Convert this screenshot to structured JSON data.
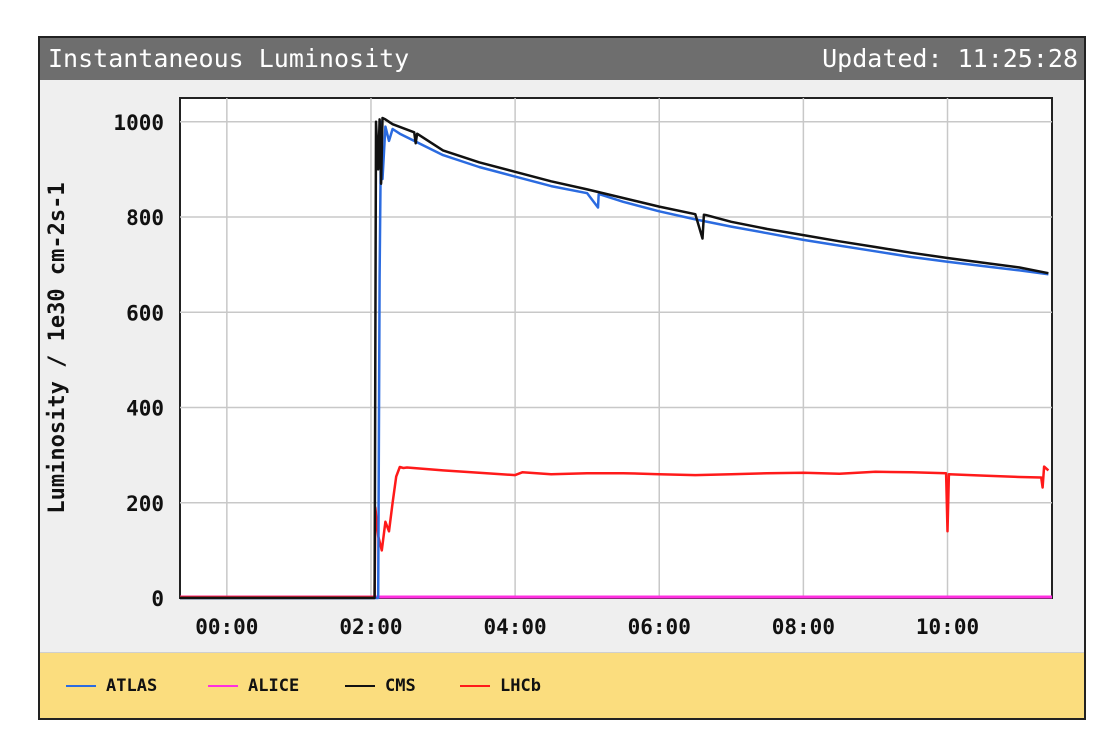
{
  "header": {
    "title": "Instantaneous Luminosity",
    "updated": "Updated: 11:25:28"
  },
  "chart_data": {
    "type": "line",
    "title": "Instantaneous Luminosity",
    "xlabel": "",
    "ylabel": "Luminosity / 1e30 cm-2s-1",
    "x_unit": "hours",
    "xlim": [
      -0.65,
      11.45
    ],
    "ylim": [
      0,
      1050
    ],
    "x_ticks": [
      0,
      2,
      4,
      6,
      8,
      10
    ],
    "x_tick_labels": [
      "00:00",
      "02:00",
      "04:00",
      "06:00",
      "08:00",
      "10:00"
    ],
    "y_ticks": [
      0,
      200,
      400,
      600,
      800,
      1000
    ],
    "y_tick_labels": [
      "0",
      "200",
      "400",
      "600",
      "800",
      "1000"
    ],
    "grid": true,
    "legend_position": "bottom",
    "series": [
      {
        "name": "ATLAS",
        "color": "#2b6be0",
        "x": [
          -0.65,
          2.1,
          2.12,
          2.14,
          2.16,
          2.2,
          2.25,
          2.3,
          2.4,
          2.6,
          3.0,
          3.5,
          4.0,
          4.5,
          5.0,
          5.15,
          5.16,
          5.17,
          5.5,
          6.0,
          6.5,
          7.0,
          7.5,
          8.0,
          8.5,
          9.0,
          9.5,
          10.0,
          10.5,
          11.0,
          11.4
        ],
        "y": [
          0,
          0,
          675,
          1000,
          880,
          990,
          960,
          985,
          975,
          960,
          930,
          905,
          885,
          865,
          850,
          820,
          848,
          848,
          832,
          812,
          795,
          780,
          766,
          752,
          740,
          728,
          716,
          706,
          697,
          688,
          680
        ]
      },
      {
        "name": "ALICE",
        "color": "#ff2fe0",
        "x": [
          -0.65,
          11.45
        ],
        "y": [
          2,
          2
        ]
      },
      {
        "name": "CMS",
        "color": "#111111",
        "x": [
          -0.65,
          2.05,
          2.07,
          2.1,
          2.12,
          2.14,
          2.16,
          2.2,
          2.3,
          2.6,
          2.62,
          2.64,
          3.0,
          3.5,
          4.0,
          4.5,
          5.0,
          5.5,
          6.0,
          6.5,
          6.6,
          6.62,
          6.65,
          7.0,
          7.5,
          8.0,
          8.5,
          9.0,
          9.5,
          10.0,
          10.5,
          11.0,
          11.4
        ],
        "y": [
          0,
          0,
          1000,
          900,
          1005,
          870,
          1008,
          1005,
          995,
          978,
          955,
          975,
          940,
          915,
          895,
          875,
          858,
          840,
          822,
          806,
          755,
          805,
          804,
          790,
          775,
          762,
          749,
          737,
          725,
          714,
          704,
          694,
          682
        ]
      },
      {
        "name": "LHCb",
        "color": "#ff1a1a",
        "x": [
          -0.65,
          2.05,
          2.06,
          2.1,
          2.15,
          2.2,
          2.25,
          2.3,
          2.35,
          2.4,
          2.45,
          2.5,
          3.0,
          3.5,
          4.0,
          4.1,
          4.5,
          5.0,
          5.5,
          6.0,
          6.5,
          7.0,
          7.5,
          8.0,
          8.5,
          9.0,
          9.5,
          9.98,
          10.0,
          10.02,
          10.5,
          11.0,
          11.3,
          11.32,
          11.34,
          11.4
        ],
        "y": [
          2,
          2,
          190,
          130,
          100,
          160,
          140,
          200,
          255,
          275,
          273,
          274,
          268,
          263,
          258,
          264,
          260,
          262,
          262,
          260,
          258,
          260,
          262,
          263,
          261,
          265,
          264,
          262,
          140,
          260,
          257,
          254,
          253,
          232,
          276,
          268
        ]
      }
    ]
  }
}
